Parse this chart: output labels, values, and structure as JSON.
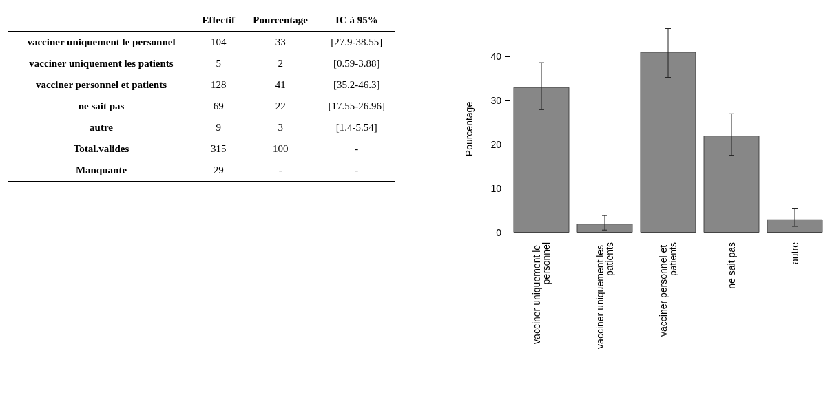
{
  "chart_data": [
    {
      "type": "other",
      "annotations": [
        "Effectif",
        "Pourcentage",
        "IC à 95%",
        "vacciner uniquement le personnel",
        "104",
        "33",
        "[27.9-38.55]",
        "vacciner uniquement les patients",
        "5",
        "2",
        "[0.59-3.88]",
        "vacciner personnel et patients",
        "128",
        "41",
        "[35.2-46.3]",
        "ne sait pas",
        "69",
        "22",
        "[17.55-26.96]",
        "autre",
        "9",
        "3",
        "[1.4-5.54]",
        "Total.valides",
        "315",
        "100",
        "-",
        "Manquante",
        "29",
        "-",
        "-"
      ]
    },
    {
      "type": "bar",
      "ylabel": "Pourcentage",
      "categories": [
        "vacciner uniquement le personnel",
        "vacciner uniquement les patients",
        "vacciner personnel et patients",
        "ne sait pas",
        "autre"
      ],
      "values": [
        33,
        2,
        41,
        22,
        3
      ],
      "errors": [
        [
          27.9,
          38.55
        ],
        [
          0.59,
          3.88
        ],
        [
          35.2,
          46.3
        ],
        [
          17.55,
          26.96
        ],
        [
          1.4,
          5.54
        ]
      ],
      "color": "#878787",
      "ylim": [
        0,
        47
      ],
      "yticks": [
        0,
        10,
        20,
        30,
        40
      ]
    }
  ]
}
